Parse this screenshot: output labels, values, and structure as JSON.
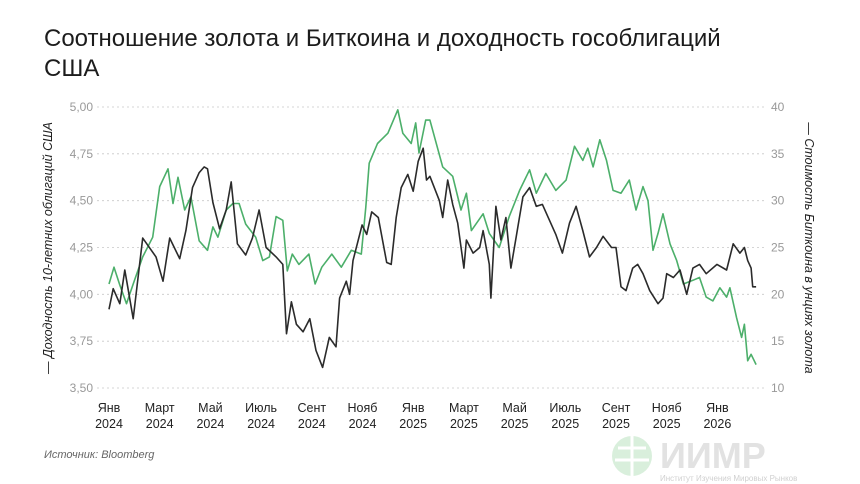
{
  "chart_data": {
    "type": "line",
    "title": "Соотношение золота и Биткоина и доходность гособлигаций США",
    "ylabel_left": "— Доходность 10-летних облигаций США",
    "ylabel_right": "— Стоимость Биткоина в унциях золота",
    "ylim_left": [
      3.5,
      5.0
    ],
    "ylim_right": [
      10,
      40
    ],
    "yticks_left": [
      "5,00",
      "4,75",
      "4,50",
      "4,25",
      "4,00",
      "3,75",
      "3,50"
    ],
    "yticks_right": [
      "40",
      "35",
      "30",
      "25",
      "20",
      "15",
      "10"
    ],
    "xticks": [
      [
        "Янв",
        "2024"
      ],
      [
        "Март",
        "2024"
      ],
      [
        "Май",
        "2024"
      ],
      [
        "Июль",
        "2024"
      ],
      [
        "Сент",
        "2024"
      ],
      [
        "Нояб",
        "2024"
      ],
      [
        "Янв",
        "2025"
      ],
      [
        "Март",
        "2025"
      ],
      [
        "Май",
        "2025"
      ],
      [
        "Июль",
        "2025"
      ],
      [
        "Сент",
        "2025"
      ],
      [
        "Нояб",
        "2025"
      ],
      [
        "Янв",
        "2026"
      ]
    ],
    "grid": true,
    "colors": {
      "yield": "#2b2b2b",
      "ratio": "#4caf6a",
      "grid": "#c8c8c8"
    },
    "series": [
      {
        "axis": "left",
        "data": [
          [
            "2024-01-01",
            3.92
          ],
          [
            "2024-01-06",
            4.03
          ],
          [
            "2024-01-14",
            3.95
          ],
          [
            "2024-01-20",
            4.13
          ],
          [
            "2024-01-30",
            3.87
          ],
          [
            "2024-02-11",
            4.3
          ],
          [
            "2024-02-27",
            4.2
          ],
          [
            "2024-03-05",
            4.07
          ],
          [
            "2024-03-13",
            4.3
          ],
          [
            "2024-03-25",
            4.19
          ],
          [
            "2024-04-02",
            4.34
          ],
          [
            "2024-04-10",
            4.57
          ],
          [
            "2024-04-18",
            4.65
          ],
          [
            "2024-04-24",
            4.68
          ],
          [
            "2024-04-28",
            4.67
          ],
          [
            "2024-05-04",
            4.49
          ],
          [
            "2024-05-12",
            4.35
          ],
          [
            "2024-05-20",
            4.45
          ],
          [
            "2024-05-26",
            4.6
          ],
          [
            "2024-06-03",
            4.27
          ],
          [
            "2024-06-13",
            4.21
          ],
          [
            "2024-06-21",
            4.3
          ],
          [
            "2024-06-29",
            4.45
          ],
          [
            "2024-07-07",
            4.25
          ],
          [
            "2024-07-19",
            4.2
          ],
          [
            "2024-07-27",
            4.16
          ],
          [
            "2024-08-01",
            3.79
          ],
          [
            "2024-08-07",
            3.96
          ],
          [
            "2024-08-13",
            3.84
          ],
          [
            "2024-08-21",
            3.8
          ],
          [
            "2024-08-29",
            3.87
          ],
          [
            "2024-09-06",
            3.7
          ],
          [
            "2024-09-14",
            3.61
          ],
          [
            "2024-09-22",
            3.77
          ],
          [
            "2024-09-30",
            3.72
          ],
          [
            "2024-10-04",
            3.98
          ],
          [
            "2024-10-12",
            4.07
          ],
          [
            "2024-10-16",
            4.0
          ],
          [
            "2024-10-20",
            4.18
          ],
          [
            "2024-10-31",
            4.37
          ],
          [
            "2024-11-06",
            4.32
          ],
          [
            "2024-11-12",
            4.44
          ],
          [
            "2024-11-20",
            4.41
          ],
          [
            "2024-11-30",
            4.17
          ],
          [
            "2024-12-05",
            4.16
          ],
          [
            "2024-12-11",
            4.41
          ],
          [
            "2024-12-17",
            4.57
          ],
          [
            "2024-12-25",
            4.64
          ],
          [
            "2025-01-01",
            4.55
          ],
          [
            "2025-01-07",
            4.71
          ],
          [
            "2025-01-13",
            4.78
          ],
          [
            "2025-01-17",
            4.61
          ],
          [
            "2025-01-21",
            4.63
          ],
          [
            "2025-02-02",
            4.5
          ],
          [
            "2025-02-06",
            4.41
          ],
          [
            "2025-02-12",
            4.61
          ],
          [
            "2025-02-18",
            4.48
          ],
          [
            "2025-02-24",
            4.38
          ],
          [
            "2025-03-01",
            4.14
          ],
          [
            "2025-03-04",
            4.29
          ],
          [
            "2025-03-12",
            4.22
          ],
          [
            "2025-03-20",
            4.25
          ],
          [
            "2025-03-24",
            4.34
          ],
          [
            "2025-04-01",
            4.16
          ],
          [
            "2025-04-03",
            3.98
          ],
          [
            "2025-04-09",
            4.47
          ],
          [
            "2025-04-15",
            4.29
          ],
          [
            "2025-04-21",
            4.41
          ],
          [
            "2025-04-27",
            4.14
          ],
          [
            "2025-05-03",
            4.31
          ],
          [
            "2025-05-11",
            4.52
          ],
          [
            "2025-05-19",
            4.57
          ],
          [
            "2025-05-27",
            4.47
          ],
          [
            "2025-06-04",
            4.48
          ],
          [
            "2025-06-12",
            4.4
          ],
          [
            "2025-06-20",
            4.32
          ],
          [
            "2025-06-28",
            4.22
          ],
          [
            "2025-07-06",
            4.38
          ],
          [
            "2025-07-14",
            4.47
          ],
          [
            "2025-07-22",
            4.34
          ],
          [
            "2025-07-30",
            4.2
          ],
          [
            "2025-08-08",
            4.25
          ],
          [
            "2025-08-16",
            4.31
          ],
          [
            "2025-08-26",
            4.25
          ],
          [
            "2025-09-01",
            4.25
          ],
          [
            "2025-09-07",
            4.04
          ],
          [
            "2025-09-13",
            4.02
          ],
          [
            "2025-09-21",
            4.14
          ],
          [
            "2025-09-27",
            4.16
          ],
          [
            "2025-10-03",
            4.11
          ],
          [
            "2025-10-11",
            4.02
          ],
          [
            "2025-10-21",
            3.95
          ],
          [
            "2025-10-27",
            3.98
          ],
          [
            "2025-11-01",
            4.11
          ],
          [
            "2025-11-09",
            4.09
          ],
          [
            "2025-11-17",
            4.13
          ],
          [
            "2025-11-25",
            4.0
          ],
          [
            "2025-12-02",
            4.14
          ],
          [
            "2025-12-10",
            4.16
          ],
          [
            "2025-12-18",
            4.11
          ],
          [
            "2025-12-31",
            4.16
          ],
          [
            "2026-01-12",
            4.13
          ],
          [
            "2026-01-20",
            4.27
          ],
          [
            "2026-01-28",
            4.22
          ],
          [
            "2026-02-03",
            4.25
          ],
          [
            "2026-02-07",
            4.18
          ],
          [
            "2026-02-11",
            4.14
          ],
          [
            "2026-02-13",
            4.04
          ],
          [
            "2026-02-17",
            4.04
          ]
        ]
      },
      {
        "axis": "right",
        "data": [
          [
            "2024-01-01",
            21.1
          ],
          [
            "2024-01-07",
            22.9
          ],
          [
            "2024-01-14",
            21.0
          ],
          [
            "2024-01-22",
            19.0
          ],
          [
            "2024-01-30",
            21.1
          ],
          [
            "2024-02-11",
            24.0
          ],
          [
            "2024-02-23",
            26.1
          ],
          [
            "2024-03-01",
            31.5
          ],
          [
            "2024-03-11",
            33.4
          ],
          [
            "2024-03-17",
            29.7
          ],
          [
            "2024-03-23",
            32.5
          ],
          [
            "2024-03-31",
            29.0
          ],
          [
            "2024-04-08",
            30.4
          ],
          [
            "2024-04-18",
            25.7
          ],
          [
            "2024-04-28",
            24.7
          ],
          [
            "2024-05-04",
            27.2
          ],
          [
            "2024-05-10",
            26.1
          ],
          [
            "2024-05-20",
            29.0
          ],
          [
            "2024-05-28",
            29.7
          ],
          [
            "2024-06-05",
            29.7
          ],
          [
            "2024-06-13",
            27.5
          ],
          [
            "2024-06-25",
            26.1
          ],
          [
            "2024-07-03",
            23.6
          ],
          [
            "2024-07-11",
            24.0
          ],
          [
            "2024-07-19",
            28.3
          ],
          [
            "2024-07-27",
            27.9
          ],
          [
            "2024-08-02",
            22.5
          ],
          [
            "2024-08-08",
            24.3
          ],
          [
            "2024-08-16",
            23.2
          ],
          [
            "2024-08-28",
            24.3
          ],
          [
            "2024-09-05",
            21.1
          ],
          [
            "2024-09-13",
            22.9
          ],
          [
            "2024-09-25",
            24.3
          ],
          [
            "2024-10-06",
            22.9
          ],
          [
            "2024-10-18",
            24.7
          ],
          [
            "2024-10-30",
            24.3
          ],
          [
            "2024-11-05",
            29.3
          ],
          [
            "2024-11-09",
            34.0
          ],
          [
            "2024-11-19",
            36.1
          ],
          [
            "2024-12-01",
            37.2
          ],
          [
            "2024-12-13",
            39.7
          ],
          [
            "2024-12-19",
            37.2
          ],
          [
            "2024-12-29",
            36.1
          ],
          [
            "2025-01-04",
            38.3
          ],
          [
            "2025-01-08",
            35.1
          ],
          [
            "2025-01-16",
            38.6
          ],
          [
            "2025-01-21",
            38.6
          ],
          [
            "2025-02-06",
            33.6
          ],
          [
            "2025-02-18",
            32.6
          ],
          [
            "2025-02-28",
            29.0
          ],
          [
            "2025-03-04",
            30.8
          ],
          [
            "2025-03-10",
            26.8
          ],
          [
            "2025-03-24",
            28.6
          ],
          [
            "2025-04-01",
            26.5
          ],
          [
            "2025-04-13",
            25.0
          ],
          [
            "2025-04-25",
            28.3
          ],
          [
            "2025-05-07",
            31.1
          ],
          [
            "2025-05-19",
            33.3
          ],
          [
            "2025-05-27",
            30.8
          ],
          [
            "2025-06-08",
            32.9
          ],
          [
            "2025-06-20",
            31.1
          ],
          [
            "2025-07-02",
            32.2
          ],
          [
            "2025-07-12",
            35.8
          ],
          [
            "2025-07-22",
            34.3
          ],
          [
            "2025-07-28",
            35.6
          ],
          [
            "2025-08-04",
            33.6
          ],
          [
            "2025-08-12",
            36.5
          ],
          [
            "2025-08-20",
            34.3
          ],
          [
            "2025-08-28",
            31.1
          ],
          [
            "2025-09-07",
            30.8
          ],
          [
            "2025-09-17",
            32.2
          ],
          [
            "2025-09-25",
            29.0
          ],
          [
            "2025-10-03",
            31.5
          ],
          [
            "2025-10-09",
            30.0
          ],
          [
            "2025-10-15",
            24.7
          ],
          [
            "2025-10-21",
            26.5
          ],
          [
            "2025-10-27",
            28.6
          ],
          [
            "2025-11-05",
            25.4
          ],
          [
            "2025-11-13",
            23.6
          ],
          [
            "2025-11-21",
            21.1
          ],
          [
            "2025-12-02",
            21.5
          ],
          [
            "2025-12-10",
            21.8
          ],
          [
            "2025-12-18",
            19.7
          ],
          [
            "2025-12-26",
            19.3
          ],
          [
            "2026-01-04",
            20.7
          ],
          [
            "2026-01-12",
            19.7
          ],
          [
            "2026-01-16",
            20.7
          ],
          [
            "2026-01-24",
            17.5
          ],
          [
            "2026-01-30",
            15.4
          ],
          [
            "2026-02-03",
            16.8
          ],
          [
            "2026-02-07",
            12.9
          ],
          [
            "2026-02-11",
            13.6
          ],
          [
            "2026-02-17",
            12.5
          ]
        ]
      }
    ]
  },
  "source": "Источник: Bloomberg",
  "logo": {
    "letters": "ИИМР",
    "subtitle": "Институт Изучения Мировых Рынков"
  }
}
